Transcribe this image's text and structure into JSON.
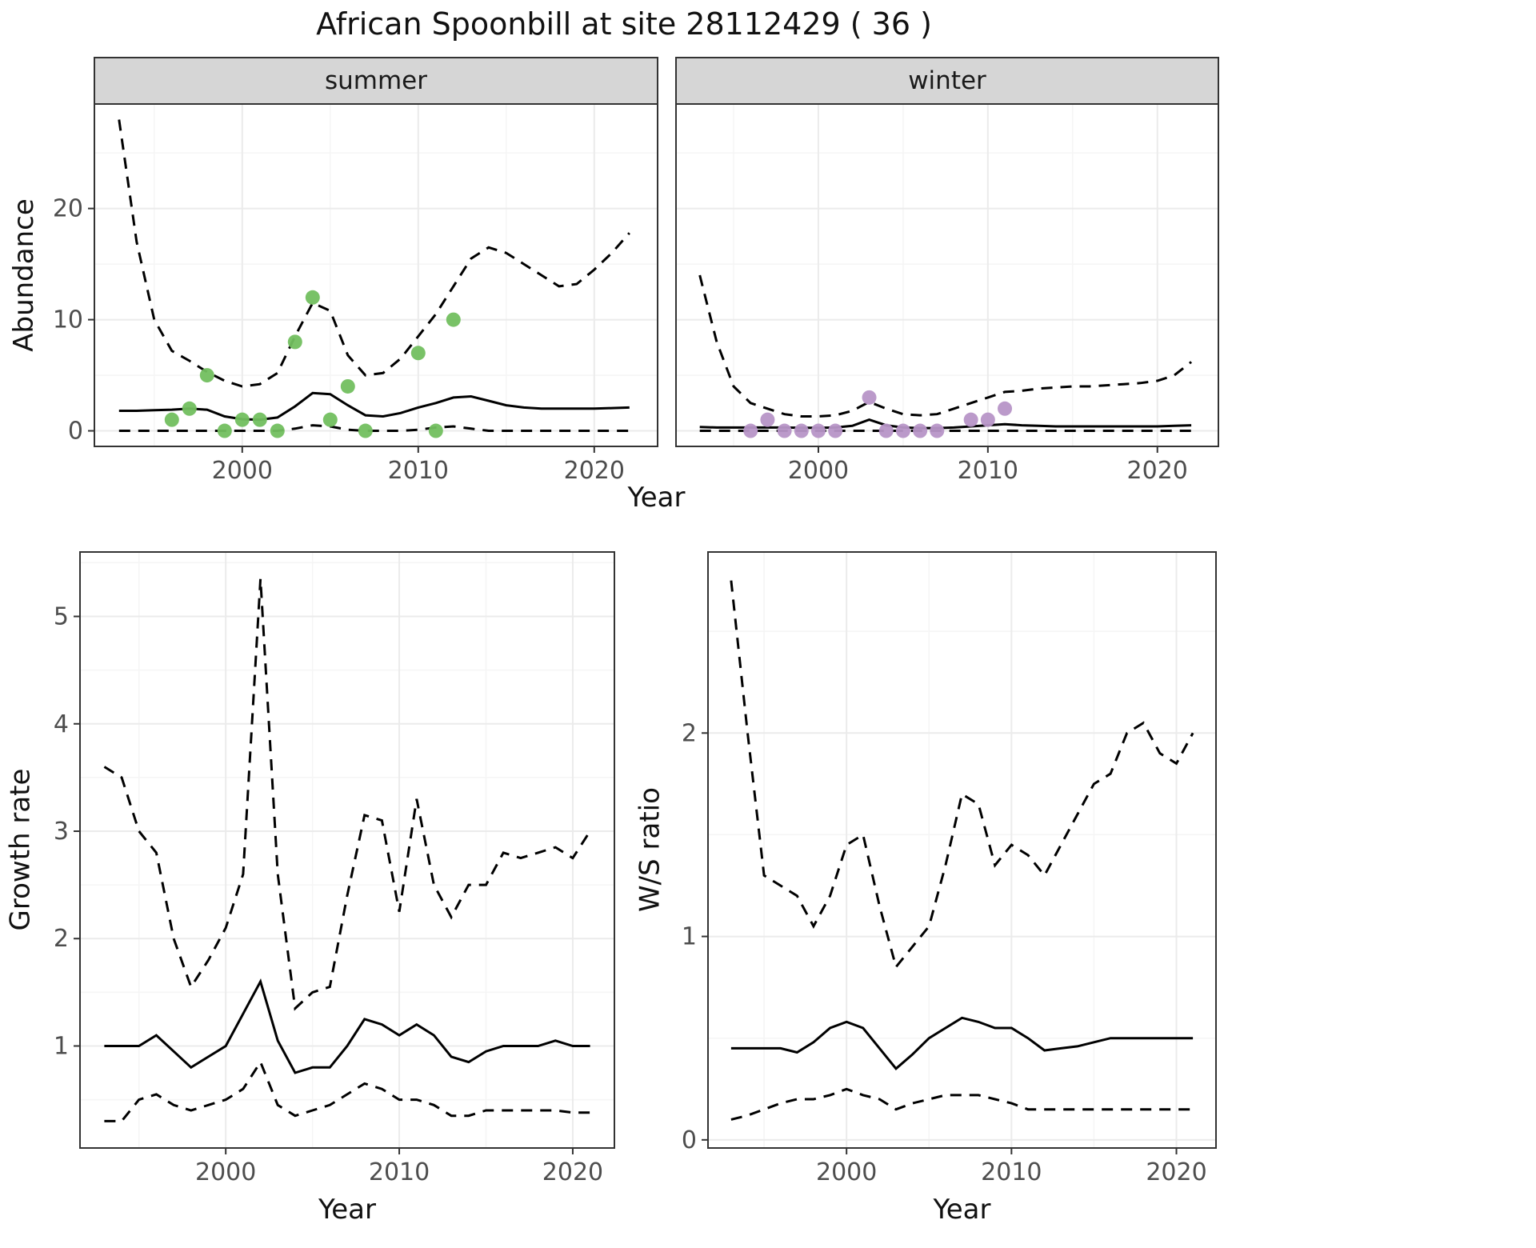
{
  "title": "African Spoonbill at site 28112429 ( 36 )",
  "colors": {
    "summer_points": "#72bf5f",
    "winter_points": "#b795c7",
    "line": "#000000",
    "grid_major": "#ebebeb",
    "grid_minor": "#f5f5f5",
    "panel_border": "#333333",
    "strip_fill": "#d6d6d6",
    "axis_text": "#4d4d4d",
    "tick": "#333333"
  },
  "chart_data": [
    {
      "name": "abundance-summer",
      "type": "line",
      "facet_label": "summer",
      "xlabel": "Year",
      "ylabel": "Abundance",
      "xlim": [
        1991.6,
        2023.6
      ],
      "ylim": [
        -1.4,
        29.4
      ],
      "xticks": [
        2000,
        2010,
        2020
      ],
      "yticks": [
        0,
        10,
        20
      ],
      "x": [
        1993,
        1994,
        1995,
        1996,
        1997,
        1998,
        1999,
        2000,
        2001,
        2002,
        2003,
        2004,
        2005,
        2006,
        2007,
        2008,
        2009,
        2010,
        2011,
        2012,
        2013,
        2014,
        2015,
        2016,
        2017,
        2018,
        2019,
        2020,
        2021,
        2022
      ],
      "series": [
        {
          "name": "mean",
          "style": "solid",
          "values": [
            1.8,
            1.8,
            1.85,
            1.9,
            2.0,
            1.9,
            1.3,
            1.05,
            1.0,
            1.2,
            2.2,
            3.4,
            3.3,
            2.3,
            1.4,
            1.3,
            1.6,
            2.1,
            2.5,
            3.0,
            3.1,
            2.7,
            2.3,
            2.1,
            2.0,
            2.0,
            2.0,
            2.0,
            2.05,
            2.1
          ]
        },
        {
          "name": "upper-ci",
          "style": "dashed",
          "values": [
            28,
            17,
            10,
            7.2,
            6.3,
            5.3,
            4.5,
            4.0,
            4.2,
            5.2,
            8.5,
            11.5,
            10.8,
            6.8,
            5.0,
            5.2,
            6.5,
            8.5,
            10.5,
            13,
            15.5,
            16.5,
            16,
            15,
            14,
            13,
            13.2,
            14.5,
            16,
            17.8
          ]
        },
        {
          "name": "lower-ci",
          "style": "dashed",
          "values": [
            0,
            0,
            0,
            0,
            0,
            0,
            0,
            0,
            0,
            0,
            0.2,
            0.5,
            0.4,
            0.1,
            0,
            0,
            0,
            0.1,
            0.3,
            0.4,
            0.2,
            0,
            0,
            0,
            0,
            0,
            0,
            0,
            0,
            0
          ]
        }
      ],
      "points": {
        "name": "summer-observations",
        "color": "#72bf5f",
        "x": [
          1996,
          1997,
          1998,
          1999,
          2000,
          2001,
          2002,
          2003,
          2004,
          2005,
          2006,
          2007,
          2010,
          2011,
          2012
        ],
        "y": [
          1,
          2,
          5,
          0,
          1,
          1,
          0,
          8,
          12,
          1,
          4,
          0,
          7,
          0,
          10
        ]
      }
    },
    {
      "name": "abundance-winter",
      "type": "line",
      "facet_label": "winter",
      "xlabel": "Year",
      "ylabel": "Abundance",
      "xlim": [
        1991.6,
        2023.6
      ],
      "ylim": [
        -1.4,
        29.4
      ],
      "xticks": [
        2000,
        2010,
        2020
      ],
      "yticks": [
        0,
        10,
        20
      ],
      "x": [
        1993,
        1994,
        1995,
        1996,
        1997,
        1998,
        1999,
        2000,
        2001,
        2002,
        2003,
        2004,
        2005,
        2006,
        2007,
        2008,
        2009,
        2010,
        2011,
        2012,
        2013,
        2014,
        2015,
        2016,
        2017,
        2018,
        2019,
        2020,
        2021,
        2022
      ],
      "series": [
        {
          "name": "mean",
          "style": "solid",
          "values": [
            0.35,
            0.3,
            0.3,
            0.3,
            0.3,
            0.3,
            0.28,
            0.28,
            0.3,
            0.45,
            1.0,
            0.5,
            0.3,
            0.25,
            0.25,
            0.3,
            0.4,
            0.5,
            0.6,
            0.5,
            0.45,
            0.4,
            0.4,
            0.4,
            0.4,
            0.4,
            0.4,
            0.4,
            0.45,
            0.5
          ]
        },
        {
          "name": "upper-ci",
          "style": "dashed",
          "values": [
            14,
            8,
            4,
            2.5,
            2.0,
            1.5,
            1.3,
            1.3,
            1.4,
            1.8,
            2.6,
            2.0,
            1.5,
            1.4,
            1.5,
            2.0,
            2.5,
            3.0,
            3.5,
            3.6,
            3.8,
            3.9,
            4.0,
            4.0,
            4.1,
            4.2,
            4.3,
            4.5,
            5.0,
            6.2
          ]
        },
        {
          "name": "lower-ci",
          "style": "dashed",
          "values": [
            0,
            0,
            0,
            0,
            0,
            0,
            0,
            0,
            0,
            0,
            0,
            0,
            0,
            0,
            0,
            0,
            0,
            0,
            0,
            0,
            0,
            0,
            0,
            0,
            0,
            0,
            0,
            0,
            0,
            0
          ]
        }
      ],
      "points": {
        "name": "winter-observations",
        "color": "#b795c7",
        "x": [
          1996,
          1997,
          1998,
          1999,
          2000,
          2001,
          2003,
          2004,
          2005,
          2006,
          2007,
          2009,
          2010,
          2011
        ],
        "y": [
          0,
          1,
          0,
          0,
          0,
          0,
          3,
          0,
          0,
          0,
          0,
          1,
          1,
          2
        ]
      }
    },
    {
      "name": "growth-rate",
      "type": "line",
      "xlabel": "Year",
      "ylabel": "Growth rate",
      "xlim": [
        1991.6,
        2022.4
      ],
      "ylim": [
        0.05,
        5.6
      ],
      "xticks": [
        2000,
        2010,
        2020
      ],
      "yticks": [
        1,
        2,
        3,
        4,
        5
      ],
      "x": [
        1993,
        1994,
        1995,
        1996,
        1997,
        1998,
        1999,
        2000,
        2001,
        2002,
        2003,
        2004,
        2005,
        2006,
        2007,
        2008,
        2009,
        2010,
        2011,
        2012,
        2013,
        2014,
        2015,
        2016,
        2017,
        2018,
        2019,
        2020,
        2021
      ],
      "series": [
        {
          "name": "mean",
          "style": "solid",
          "values": [
            1.0,
            1.0,
            1.0,
            1.1,
            0.95,
            0.8,
            0.9,
            1.0,
            1.3,
            1.6,
            1.05,
            0.75,
            0.8,
            0.8,
            1.0,
            1.25,
            1.2,
            1.1,
            1.2,
            1.1,
            0.9,
            0.85,
            0.95,
            1.0,
            1.0,
            1.0,
            1.05,
            1.0,
            1.0
          ]
        },
        {
          "name": "upper-ci",
          "style": "dashed",
          "values": [
            3.6,
            3.5,
            3.0,
            2.8,
            2.0,
            1.55,
            1.8,
            2.1,
            2.6,
            5.35,
            2.6,
            1.35,
            1.5,
            1.55,
            2.4,
            3.15,
            3.1,
            2.25,
            3.3,
            2.5,
            2.2,
            2.5,
            2.5,
            2.8,
            2.75,
            2.8,
            2.85,
            2.75,
            3.0
          ]
        },
        {
          "name": "lower-ci",
          "style": "dashed",
          "values": [
            0.3,
            0.3,
            0.5,
            0.55,
            0.45,
            0.4,
            0.45,
            0.5,
            0.6,
            0.85,
            0.45,
            0.35,
            0.4,
            0.45,
            0.55,
            0.65,
            0.6,
            0.5,
            0.5,
            0.45,
            0.35,
            0.35,
            0.4,
            0.4,
            0.4,
            0.4,
            0.4,
            0.38,
            0.38
          ]
        }
      ]
    },
    {
      "name": "ws-ratio",
      "type": "line",
      "xlabel": "Year",
      "ylabel": "W/S ratio",
      "xlim": [
        1991.6,
        2022.4
      ],
      "ylim": [
        -0.04,
        2.89
      ],
      "xticks": [
        2000,
        2010,
        2020
      ],
      "yticks": [
        0,
        1,
        2
      ],
      "x": [
        1993,
        1994,
        1995,
        1996,
        1997,
        1998,
        1999,
        2000,
        2001,
        2002,
        2003,
        2004,
        2005,
        2006,
        2007,
        2008,
        2009,
        2010,
        2011,
        2012,
        2013,
        2014,
        2015,
        2016,
        2017,
        2018,
        2019,
        2020,
        2021
      ],
      "series": [
        {
          "name": "mean",
          "style": "solid",
          "values": [
            0.45,
            0.45,
            0.45,
            0.45,
            0.43,
            0.48,
            0.55,
            0.58,
            0.55,
            0.45,
            0.35,
            0.42,
            0.5,
            0.55,
            0.6,
            0.58,
            0.55,
            0.55,
            0.5,
            0.44,
            0.45,
            0.46,
            0.48,
            0.5,
            0.5,
            0.5,
            0.5,
            0.5,
            0.5
          ]
        },
        {
          "name": "upper-ci",
          "style": "dashed",
          "values": [
            2.75,
            2.0,
            1.3,
            1.25,
            1.2,
            1.05,
            1.2,
            1.45,
            1.5,
            1.15,
            0.85,
            0.95,
            1.05,
            1.35,
            1.7,
            1.65,
            1.35,
            1.45,
            1.4,
            1.3,
            1.45,
            1.6,
            1.75,
            1.8,
            2.0,
            2.05,
            1.9,
            1.85,
            2.0
          ]
        },
        {
          "name": "lower-ci",
          "style": "dashed",
          "values": [
            0.1,
            0.12,
            0.15,
            0.18,
            0.2,
            0.2,
            0.22,
            0.25,
            0.22,
            0.2,
            0.15,
            0.18,
            0.2,
            0.22,
            0.22,
            0.22,
            0.2,
            0.18,
            0.15,
            0.15,
            0.15,
            0.15,
            0.15,
            0.15,
            0.15,
            0.15,
            0.15,
            0.15,
            0.15
          ]
        }
      ]
    }
  ]
}
